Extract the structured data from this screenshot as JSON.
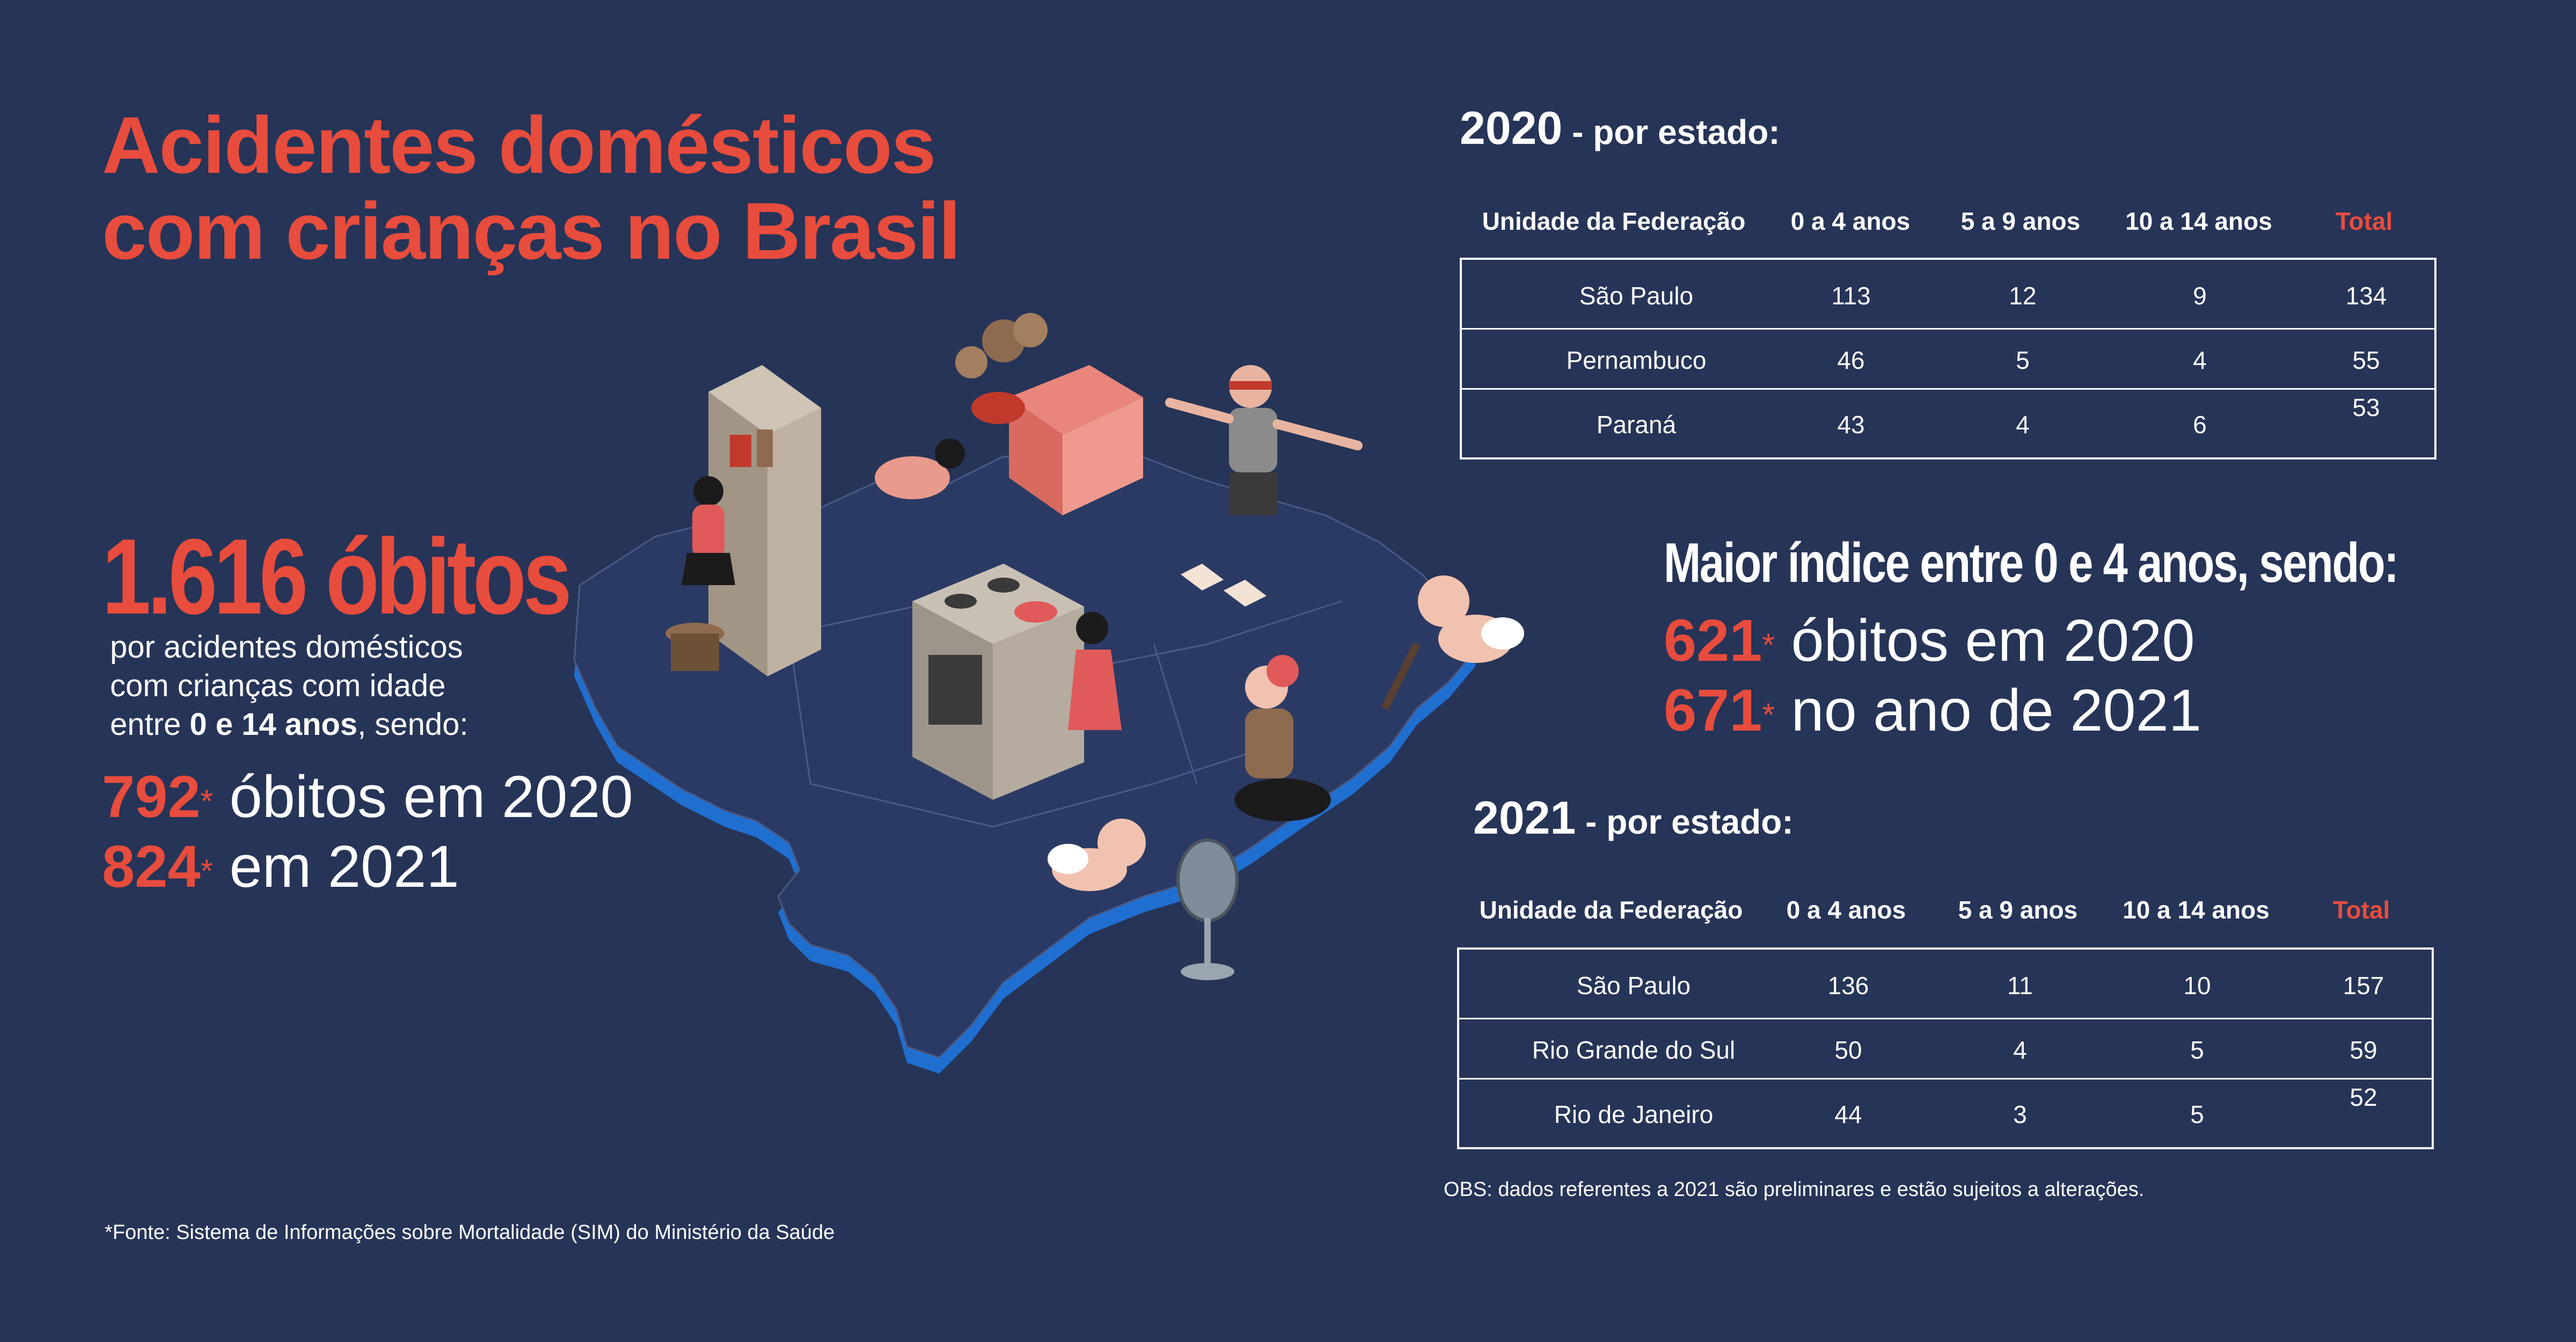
{
  "title": {
    "line1": "Acidentes domésticos",
    "line2": "com crianças no Brasil"
  },
  "summary": {
    "big_number": "1.616 óbitos",
    "desc_line1": "por acidentes domésticos",
    "desc_line2": "com crianças com idade",
    "desc_prefix": "entre ",
    "desc_bold": "0 e 14 anos",
    "desc_suffix": ", sendo:",
    "stat1_num": "792",
    "stat1_mark": "*",
    "stat1_text": " óbitos em 2020",
    "stat2_num": "824",
    "stat2_mark": "*",
    "stat2_text": " em 2021"
  },
  "source": "*Fonte:  Sistema de Informações sobre Mortalidade (SIM) do Ministério da Saúde",
  "max_index": {
    "heading": "Maior índice entre 0 e 4 anos, sendo:",
    "stat1_num": "621",
    "stat1_mark": "*",
    "stat1_text": " óbitos em 2020",
    "stat2_num": "671",
    "stat2_mark": "*",
    "stat2_text": " no ano de 2021"
  },
  "tables": {
    "columns": [
      "Unidade da Federação",
      "0 a 4 anos",
      "5 a 9 anos",
      "10 a 14 anos",
      "Total"
    ],
    "t2020": {
      "year": "2020",
      "sub": " - por estado:",
      "rows": [
        [
          "São Paulo",
          "113",
          "12",
          "9",
          "134"
        ],
        [
          "Pernambuco",
          "46",
          "5",
          "4",
          "55"
        ],
        [
          "Paraná",
          "43",
          "4",
          "6",
          "53"
        ]
      ]
    },
    "t2021": {
      "year": "2021",
      "sub": " - por estado:",
      "rows": [
        [
          "São Paulo",
          "136",
          "11",
          "10",
          "157"
        ],
        [
          "Rio Grande do Sul",
          "50",
          "4",
          "5",
          "59"
        ],
        [
          "Rio de Janeiro",
          "44",
          "3",
          "5",
          "52"
        ]
      ]
    }
  },
  "obs": "OBS: dados referentes a 2021 são preliminares e estão sujeitos a alterações.",
  "colors": {
    "background": "#263457",
    "accent": "#e84c3d",
    "map_blue": "#1f6fd1",
    "map_top": "#2b3a64"
  }
}
